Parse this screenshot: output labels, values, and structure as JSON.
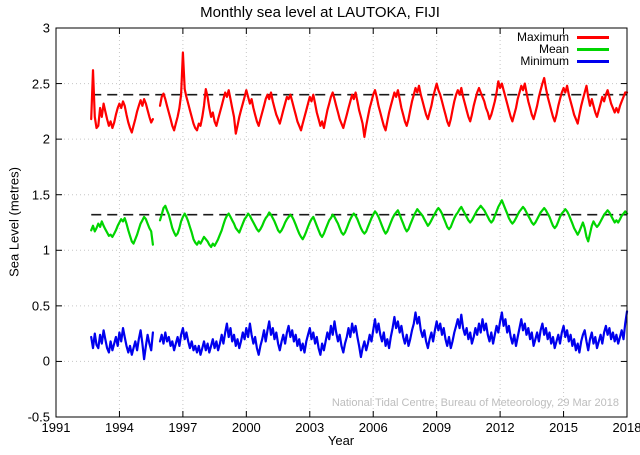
{
  "chart_data": {
    "type": "line",
    "title": "Monthly sea level at LAUTOKA, FIJI",
    "xlabel": "Year",
    "ylabel": "Sea Level (metres)",
    "xlim": [
      1991,
      2018
    ],
    "ylim": [
      -0.5,
      3
    ],
    "x_ticks": [
      1991,
      1994,
      1997,
      2000,
      2003,
      2006,
      2009,
      2012,
      2015,
      2018
    ],
    "y_ticks": [
      -0.5,
      0,
      0.5,
      1,
      1.5,
      2,
      2.5,
      3
    ],
    "grid": true,
    "grid_style": "dotted",
    "legend_position": "top-right",
    "watermark": "National Tidal Centre, Bureau of Meteorology, 29 Mar 2018",
    "series_start": {
      "year": 1992,
      "month": 9
    },
    "reference_lines": [
      {
        "series": "Maximum",
        "value": 2.4,
        "style": "dashed",
        "color": "#1a1a1a"
      },
      {
        "series": "Mean",
        "value": 1.32,
        "style": "dashed",
        "color": "#1a1a1a"
      }
    ],
    "series": [
      {
        "name": "Maximum",
        "color": "#ff0000",
        "values": [
          2.18,
          2.62,
          2.2,
          2.1,
          2.12,
          2.28,
          2.2,
          2.32,
          2.25,
          2.18,
          2.12,
          2.16,
          2.1,
          2.15,
          2.22,
          2.28,
          2.32,
          2.28,
          2.34,
          2.3,
          2.22,
          2.15,
          2.1,
          2.06,
          2.12,
          2.18,
          2.25,
          2.3,
          2.35,
          2.3,
          2.36,
          2.32,
          2.26,
          2.2,
          2.15,
          2.18,
          null,
          null,
          null,
          2.3,
          2.38,
          2.41,
          2.36,
          2.3,
          2.24,
          2.18,
          2.12,
          2.08,
          2.14,
          2.2,
          2.28,
          2.4,
          2.78,
          2.45,
          2.38,
          2.32,
          2.26,
          2.2,
          2.14,
          2.1,
          2.08,
          2.14,
          2.12,
          2.2,
          2.3,
          2.45,
          2.38,
          2.28,
          2.2,
          2.24,
          2.16,
          2.12,
          2.18,
          2.24,
          2.3,
          2.36,
          2.42,
          2.38,
          2.44,
          2.36,
          2.28,
          2.2,
          2.05,
          2.12,
          2.2,
          2.26,
          2.32,
          2.38,
          2.44,
          2.38,
          2.32,
          2.36,
          2.28,
          2.22,
          2.16,
          2.12,
          2.18,
          2.24,
          2.3,
          2.36,
          2.4,
          2.36,
          2.42,
          2.34,
          2.28,
          2.22,
          2.18,
          2.14,
          2.2,
          2.26,
          2.32,
          2.38,
          2.36,
          2.4,
          2.34,
          2.28,
          2.22,
          2.16,
          2.12,
          2.08,
          2.14,
          2.2,
          2.26,
          2.32,
          2.38,
          2.34,
          2.4,
          2.32,
          2.24,
          2.18,
          2.12,
          2.16,
          2.1,
          2.18,
          2.26,
          2.32,
          2.38,
          2.42,
          2.36,
          2.3,
          2.24,
          2.18,
          2.14,
          2.1,
          2.16,
          2.22,
          2.28,
          2.34,
          2.4,
          2.36,
          2.42,
          2.34,
          2.26,
          2.2,
          2.14,
          2.02,
          2.12,
          2.2,
          2.28,
          2.34,
          2.4,
          2.44,
          2.38,
          2.3,
          2.24,
          2.18,
          2.12,
          2.08,
          2.16,
          2.24,
          2.3,
          2.36,
          2.42,
          2.38,
          2.44,
          2.36,
          2.28,
          2.22,
          2.16,
          2.12,
          2.18,
          2.26,
          2.34,
          2.4,
          2.46,
          2.42,
          2.48,
          2.4,
          2.34,
          2.28,
          2.22,
          2.18,
          2.24,
          2.3,
          2.38,
          2.44,
          2.5,
          2.44,
          2.4,
          2.34,
          2.28,
          2.22,
          2.16,
          2.12,
          2.18,
          2.26,
          2.34,
          2.4,
          2.44,
          2.4,
          2.46,
          2.38,
          2.32,
          2.26,
          2.2,
          2.16,
          2.22,
          2.3,
          2.36,
          2.42,
          2.46,
          2.42,
          2.38,
          2.34,
          2.28,
          2.24,
          2.18,
          2.22,
          2.28,
          2.34,
          2.42,
          2.52,
          2.46,
          2.5,
          2.44,
          2.38,
          2.32,
          2.26,
          2.2,
          2.16,
          2.22,
          2.28,
          2.36,
          2.42,
          2.48,
          2.44,
          2.5,
          2.42,
          2.34,
          2.28,
          2.22,
          2.18,
          2.24,
          2.3,
          2.38,
          2.44,
          2.5,
          2.55,
          2.46,
          2.38,
          2.32,
          2.26,
          2.2,
          2.16,
          2.22,
          2.3,
          2.36,
          2.42,
          2.46,
          2.42,
          2.48,
          2.4,
          2.34,
          2.28,
          2.22,
          2.18,
          2.14,
          2.22,
          2.3,
          2.36,
          2.42,
          2.48,
          2.38,
          2.3,
          2.36,
          2.3,
          2.24,
          2.2,
          2.26,
          2.32,
          2.38,
          2.34,
          2.4,
          2.44,
          2.38,
          2.32,
          2.28,
          2.24,
          2.28,
          2.24,
          2.3,
          2.34,
          2.38,
          2.42,
          2.42
        ]
      },
      {
        "name": "Mean",
        "color": "#00d500",
        "values": [
          1.18,
          1.22,
          1.17,
          1.2,
          1.24,
          1.21,
          1.26,
          1.22,
          1.19,
          1.16,
          1.13,
          1.14,
          1.12,
          1.15,
          1.18,
          1.22,
          1.25,
          1.28,
          1.26,
          1.29,
          1.24,
          1.18,
          1.13,
          1.08,
          1.06,
          1.1,
          1.14,
          1.19,
          1.24,
          1.27,
          1.3,
          1.28,
          1.24,
          1.2,
          1.17,
          1.05,
          null,
          null,
          null,
          1.27,
          1.32,
          1.38,
          1.4,
          1.36,
          1.32,
          1.26,
          1.2,
          1.16,
          1.13,
          1.15,
          1.2,
          1.26,
          1.3,
          1.33,
          1.3,
          1.26,
          1.21,
          1.16,
          1.1,
          1.07,
          1.05,
          1.08,
          1.06,
          1.09,
          1.12,
          1.1,
          1.08,
          1.05,
          1.03,
          1.06,
          1.04,
          1.07,
          1.1,
          1.14,
          1.18,
          1.23,
          1.28,
          1.31,
          1.33,
          1.3,
          1.27,
          1.24,
          1.2,
          1.18,
          1.16,
          1.2,
          1.24,
          1.28,
          1.3,
          1.33,
          1.31,
          1.28,
          1.25,
          1.22,
          1.19,
          1.17,
          1.19,
          1.22,
          1.26,
          1.29,
          1.31,
          1.34,
          1.32,
          1.29,
          1.26,
          1.22,
          1.18,
          1.16,
          1.18,
          1.21,
          1.25,
          1.28,
          1.3,
          1.32,
          1.3,
          1.27,
          1.23,
          1.19,
          1.15,
          1.12,
          1.1,
          1.13,
          1.17,
          1.21,
          1.25,
          1.28,
          1.3,
          1.26,
          1.22,
          1.18,
          1.14,
          1.12,
          1.15,
          1.19,
          1.23,
          1.27,
          1.29,
          1.32,
          1.3,
          1.27,
          1.24,
          1.2,
          1.16,
          1.14,
          1.16,
          1.2,
          1.24,
          1.28,
          1.31,
          1.33,
          1.31,
          1.28,
          1.24,
          1.2,
          1.17,
          1.15,
          1.17,
          1.21,
          1.25,
          1.29,
          1.32,
          1.35,
          1.33,
          1.3,
          1.26,
          1.22,
          1.18,
          1.15,
          1.17,
          1.21,
          1.25,
          1.29,
          1.32,
          1.34,
          1.36,
          1.32,
          1.28,
          1.24,
          1.2,
          1.17,
          1.19,
          1.23,
          1.27,
          1.31,
          1.34,
          1.37,
          1.35,
          1.33,
          1.31,
          1.28,
          1.25,
          1.22,
          1.24,
          1.27,
          1.3,
          1.33,
          1.36,
          1.38,
          1.36,
          1.33,
          1.29,
          1.25,
          1.21,
          1.19,
          1.21,
          1.25,
          1.29,
          1.32,
          1.34,
          1.37,
          1.39,
          1.36,
          1.33,
          1.3,
          1.27,
          1.25,
          1.27,
          1.3,
          1.33,
          1.36,
          1.38,
          1.4,
          1.38,
          1.36,
          1.33,
          1.3,
          1.27,
          1.25,
          1.27,
          1.31,
          1.35,
          1.39,
          1.42,
          1.45,
          1.41,
          1.37,
          1.33,
          1.29,
          1.26,
          1.24,
          1.26,
          1.29,
          1.32,
          1.35,
          1.37,
          1.39,
          1.37,
          1.34,
          1.31,
          1.28,
          1.25,
          1.23,
          1.25,
          1.28,
          1.31,
          1.34,
          1.36,
          1.38,
          1.36,
          1.33,
          1.3,
          1.26,
          1.22,
          1.2,
          1.22,
          1.26,
          1.3,
          1.33,
          1.35,
          1.37,
          1.35,
          1.32,
          1.28,
          1.24,
          1.2,
          1.17,
          1.14,
          1.17,
          1.21,
          1.25,
          1.2,
          1.12,
          1.08,
          1.15,
          1.22,
          1.26,
          1.23,
          1.21,
          1.23,
          1.26,
          1.29,
          1.32,
          1.34,
          1.36,
          1.34,
          1.31,
          1.28,
          1.25,
          1.27,
          1.25,
          1.28,
          1.31,
          1.33,
          1.35,
          1.33
        ]
      },
      {
        "name": "Minimum",
        "color": "#0000ee",
        "values": [
          0.22,
          0.12,
          0.25,
          0.15,
          0.12,
          0.24,
          0.16,
          0.28,
          0.2,
          0.12,
          0.08,
          0.18,
          0.1,
          0.16,
          0.22,
          0.14,
          0.26,
          0.18,
          0.3,
          0.22,
          0.14,
          0.08,
          0.14,
          0.06,
          0.12,
          0.18,
          0.1,
          0.2,
          0.28,
          0.16,
          0.02,
          0.14,
          0.24,
          0.16,
          0.1,
          0.26,
          null,
          null,
          null,
          0.18,
          0.24,
          0.16,
          0.26,
          0.18,
          0.22,
          0.14,
          0.18,
          0.1,
          0.16,
          0.22,
          0.14,
          0.24,
          0.3,
          0.2,
          0.26,
          0.18,
          0.12,
          0.18,
          0.1,
          0.14,
          0.08,
          0.14,
          0.06,
          0.12,
          0.18,
          0.1,
          0.16,
          0.08,
          0.14,
          0.2,
          0.12,
          0.18,
          0.1,
          0.16,
          0.24,
          0.16,
          0.26,
          0.34,
          0.22,
          0.3,
          0.18,
          0.24,
          0.14,
          0.2,
          0.12,
          0.18,
          0.26,
          0.2,
          0.3,
          0.22,
          0.34,
          0.24,
          0.16,
          0.22,
          0.12,
          0.06,
          0.14,
          0.2,
          0.28,
          0.18,
          0.28,
          0.36,
          0.24,
          0.3,
          0.2,
          0.26,
          0.16,
          0.1,
          0.18,
          0.24,
          0.16,
          0.26,
          0.32,
          0.22,
          0.28,
          0.18,
          0.24,
          0.14,
          0.2,
          0.1,
          0.16,
          0.08,
          0.18,
          0.24,
          0.3,
          0.2,
          0.26,
          0.16,
          0.22,
          0.12,
          0.06,
          0.16,
          0.1,
          0.18,
          0.26,
          0.2,
          0.32,
          0.24,
          0.36,
          0.26,
          0.18,
          0.24,
          0.14,
          0.08,
          0.16,
          0.22,
          0.3,
          0.22,
          0.34,
          0.26,
          0.32,
          0.22,
          0.14,
          0.04,
          0.12,
          0.18,
          0.1,
          0.16,
          0.24,
          0.18,
          0.28,
          0.38,
          0.26,
          0.34,
          0.24,
          0.18,
          0.26,
          0.14,
          0.2,
          0.12,
          0.22,
          0.3,
          0.4,
          0.3,
          0.36,
          0.26,
          0.32,
          0.22,
          0.16,
          0.24,
          0.14,
          0.2,
          0.28,
          0.34,
          0.44,
          0.34,
          0.4,
          0.28,
          0.22,
          0.28,
          0.18,
          0.12,
          0.2,
          0.26,
          0.18,
          0.28,
          0.36,
          0.28,
          0.34,
          0.24,
          0.3,
          0.2,
          0.14,
          0.22,
          0.12,
          0.18,
          0.26,
          0.32,
          0.38,
          0.3,
          0.42,
          0.3,
          0.24,
          0.3,
          0.2,
          0.26,
          0.16,
          0.22,
          0.3,
          0.24,
          0.34,
          0.26,
          0.38,
          0.28,
          0.34,
          0.24,
          0.18,
          0.26,
          0.16,
          0.24,
          0.32,
          0.26,
          0.36,
          0.44,
          0.32,
          0.38,
          0.26,
          0.32,
          0.22,
          0.16,
          0.24,
          0.14,
          0.22,
          0.3,
          0.38,
          0.28,
          0.34,
          0.24,
          0.3,
          0.2,
          0.26,
          0.14,
          0.2,
          0.26,
          0.18,
          0.28,
          0.34,
          0.24,
          0.3,
          0.2,
          0.26,
          0.16,
          0.22,
          0.12,
          0.18,
          0.24,
          0.16,
          0.26,
          0.32,
          0.22,
          0.28,
          0.18,
          0.24,
          0.14,
          0.2,
          0.1,
          0.16,
          0.08,
          0.18,
          0.24,
          0.28,
          0.18,
          0.1,
          0.2,
          0.26,
          0.16,
          0.22,
          0.12,
          0.18,
          0.24,
          0.16,
          0.26,
          0.32,
          0.24,
          0.3,
          0.2,
          0.26,
          0.18,
          0.24,
          0.16,
          0.22,
          0.28,
          0.2,
          0.34,
          0.45
        ]
      }
    ]
  }
}
